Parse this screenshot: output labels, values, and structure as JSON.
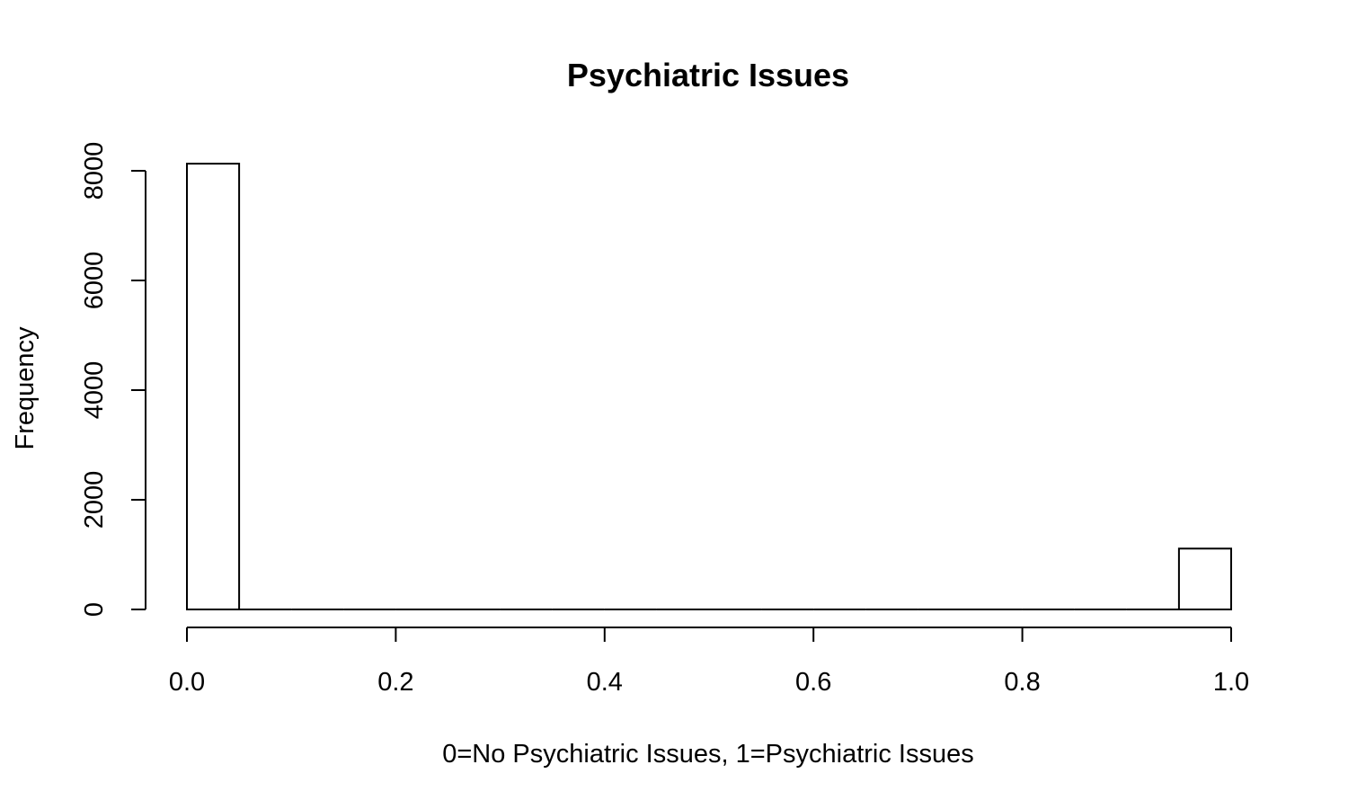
{
  "chart_data": {
    "type": "bar",
    "title": "Psychiatric Issues",
    "xlabel": "0=No Psychiatric Issues, 1=Psychiatric Issues",
    "ylabel": "Frequency",
    "xlim": [
      0.0,
      1.0
    ],
    "ylim": [
      0,
      8000
    ],
    "x_ticks": [
      "0.0",
      "0.2",
      "0.4",
      "0.6",
      "0.8",
      "1.0"
    ],
    "y_ticks": [
      "0",
      "2000",
      "4000",
      "6000",
      "8000"
    ],
    "bins": [
      {
        "start": 0.0,
        "end": 0.05,
        "count": 8130
      },
      {
        "start": 0.05,
        "end": 0.1,
        "count": 0
      },
      {
        "start": 0.1,
        "end": 0.15,
        "count": 0
      },
      {
        "start": 0.15,
        "end": 0.2,
        "count": 0
      },
      {
        "start": 0.2,
        "end": 0.25,
        "count": 0
      },
      {
        "start": 0.25,
        "end": 0.3,
        "count": 0
      },
      {
        "start": 0.3,
        "end": 0.35,
        "count": 0
      },
      {
        "start": 0.35,
        "end": 0.4,
        "count": 0
      },
      {
        "start": 0.4,
        "end": 0.45,
        "count": 0
      },
      {
        "start": 0.45,
        "end": 0.5,
        "count": 0
      },
      {
        "start": 0.5,
        "end": 0.55,
        "count": 0
      },
      {
        "start": 0.55,
        "end": 0.6,
        "count": 0
      },
      {
        "start": 0.6,
        "end": 0.65,
        "count": 0
      },
      {
        "start": 0.65,
        "end": 0.7,
        "count": 0
      },
      {
        "start": 0.7,
        "end": 0.75,
        "count": 0
      },
      {
        "start": 0.75,
        "end": 0.8,
        "count": 0
      },
      {
        "start": 0.8,
        "end": 0.85,
        "count": 0
      },
      {
        "start": 0.85,
        "end": 0.9,
        "count": 0
      },
      {
        "start": 0.9,
        "end": 0.95,
        "count": 0
      },
      {
        "start": 0.95,
        "end": 1.0,
        "count": 1110
      }
    ],
    "grid": false,
    "legend": "none"
  }
}
